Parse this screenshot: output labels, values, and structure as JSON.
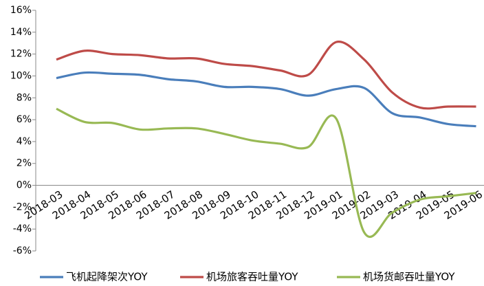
{
  "chart_data": {
    "type": "line",
    "categories": [
      "2018-03",
      "2018-04",
      "2018-05",
      "2018-06",
      "2018-07",
      "2018-08",
      "2018-09",
      "2018-10",
      "2018-11",
      "2018-12",
      "2019-01",
      "2019-02",
      "2019-03",
      "2019-04",
      "2019-05",
      "2019-06"
    ],
    "series": [
      {
        "name": "飞机起降架次YOY",
        "color": "#4a7ebb",
        "values": [
          9.8,
          10.3,
          10.2,
          10.1,
          9.7,
          9.5,
          9.0,
          9.0,
          8.8,
          8.2,
          8.8,
          8.9,
          6.6,
          6.2,
          5.6,
          5.4
        ]
      },
      {
        "name": "机场旅客吞吐量YOY",
        "color": "#be4b48",
        "values": [
          11.5,
          12.3,
          12.0,
          11.9,
          11.6,
          11.6,
          11.1,
          10.9,
          10.5,
          10.1,
          13.1,
          11.5,
          8.5,
          7.1,
          7.2,
          7.2
        ]
      },
      {
        "name": "机场货邮吞吐量YOY",
        "color": "#98b954",
        "values": [
          7.0,
          5.8,
          5.7,
          5.1,
          5.2,
          5.2,
          4.7,
          4.1,
          3.8,
          3.5,
          6.1,
          -4.3,
          -2.5,
          -1.3,
          -1.0,
          -0.7
        ]
      }
    ],
    "ylim": [
      -6,
      16
    ],
    "yticks": [
      {
        "value": -6,
        "label": "-6%"
      },
      {
        "value": -4,
        "label": "-4%"
      },
      {
        "value": -2,
        "label": "-2%"
      },
      {
        "value": 0,
        "label": "0%"
      },
      {
        "value": 2,
        "label": "2%"
      },
      {
        "value": 4,
        "label": "4%"
      },
      {
        "value": 6,
        "label": "6%"
      },
      {
        "value": 8,
        "label": "8%"
      },
      {
        "value": 10,
        "label": "10%"
      },
      {
        "value": 12,
        "label": "12%"
      },
      {
        "value": 14,
        "label": "14%"
      },
      {
        "value": 16,
        "label": "16%"
      }
    ],
    "grid": false,
    "legend": "bottom"
  }
}
